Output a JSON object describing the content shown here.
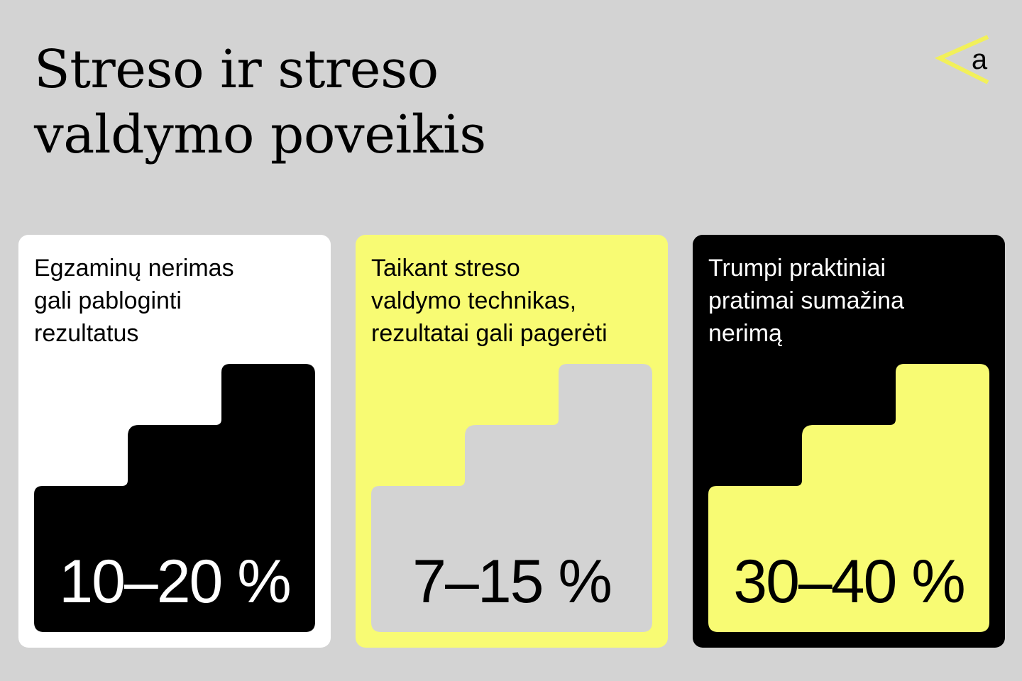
{
  "page": {
    "title": "Streso ir streso\nvaldymo poveikis"
  },
  "logo": {
    "letter": "a",
    "icon": "chevron-left-icon"
  },
  "colors": {
    "background": "#d3d3d3",
    "black": "#000000",
    "white": "#ffffff",
    "yellow": "#f8fb73",
    "accent": "#f2f05a",
    "gray": "#d3d3d3"
  },
  "cards": [
    {
      "text": "Egzaminų nerimas\ngali pabloginti\nrezultatus",
      "value": "10–20 %",
      "card_bg": "#ffffff",
      "card_fg": "#000000",
      "stair_bg": "#000000",
      "stair_fg": "#ffffff"
    },
    {
      "text": "Taikant streso\nvaldymo technikas,\nrezultatai gali pagerėti",
      "value": "7–15 %",
      "card_bg": "#f8fb73",
      "card_fg": "#000000",
      "stair_bg": "#d3d3d3",
      "stair_fg": "#000000"
    },
    {
      "text": "Trumpi praktiniai\npratimai sumažina\nnerimą",
      "value": "30–40 %",
      "card_bg": "#000000",
      "card_fg": "#ffffff",
      "stair_bg": "#f8fb73",
      "stair_fg": "#000000"
    }
  ]
}
